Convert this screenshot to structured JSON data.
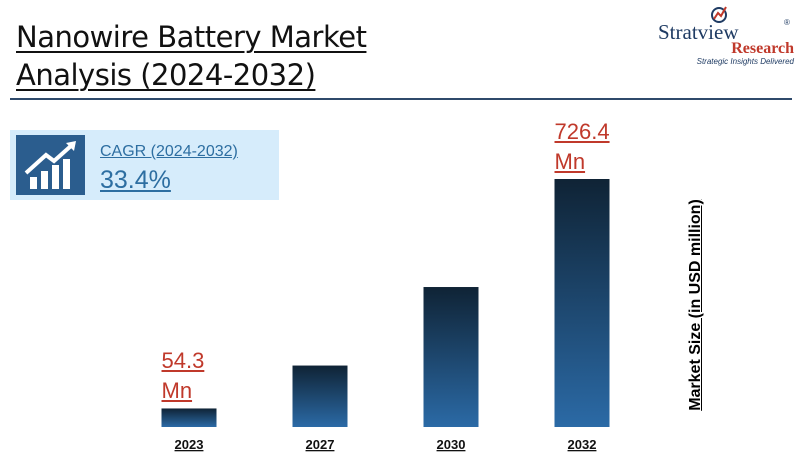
{
  "header": {
    "title_line1": "Nanowire Battery Market",
    "title_line2": "Analysis (2024-2032)"
  },
  "logo": {
    "name": "Stratview",
    "sub": "Research",
    "tagline": "Strategic Insights Delivered",
    "reg": "®"
  },
  "cagr": {
    "label": "CAGR (2024-2032)",
    "value": "33.4%",
    "icon": "growth-chart-icon"
  },
  "colors": {
    "bar_top": "#0f2335",
    "bar_bottom": "#2b6aa6",
    "label_red": "#c0392b",
    "accent_blue": "#2d6ea1"
  },
  "chart_data": {
    "type": "bar",
    "categories": [
      "2023",
      "2027",
      "2030",
      "2032"
    ],
    "values": [
      54.3,
      180,
      410,
      726.4
    ],
    "labels": [
      {
        "index": 0,
        "value": "54.3",
        "unit": "Mn"
      },
      {
        "index": 3,
        "value": "726.4",
        "unit": "Mn"
      }
    ],
    "ylabel": "Market Size (in USD million)",
    "xlabel": "",
    "grid": false
  }
}
